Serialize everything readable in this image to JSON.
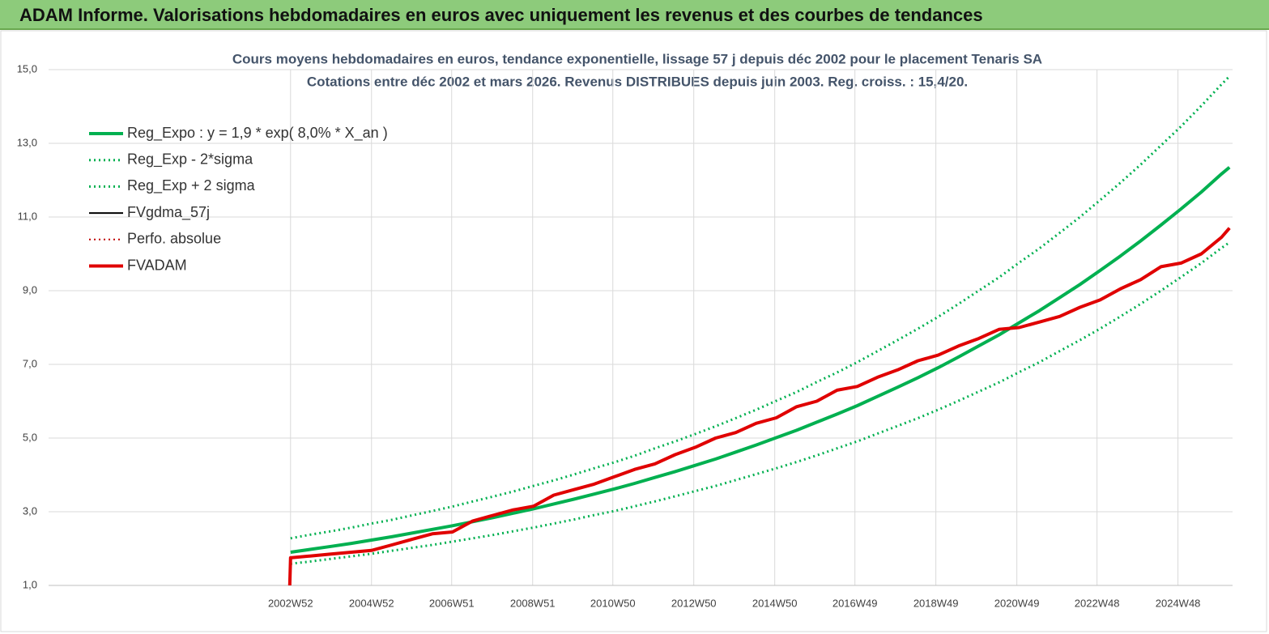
{
  "chart_data": {
    "type": "line",
    "title": "ADAM Informe. Valorisations hebdomadaires en euros avec uniquement les revenus et des courbes de tendances",
    "subtitle": [
      "Cours moyens  hebdomadaires en euros, tendance exponentielle, lissage 57 j depuis déc 2002 pour le placement Tenaris SA",
      "Cotations entre déc 2002 et mars 2026.  Revenus DISTRIBUES depuis juin 2003.  Reg. croiss. : 15,4/20."
    ],
    "x": [
      "2002W51",
      "2002W52",
      "2003W26",
      "2003W52",
      "2004W26",
      "2004W52",
      "2005W26",
      "2005W52",
      "2006W26",
      "2006W52",
      "2007W26",
      "2007W52",
      "2008W26",
      "2008W52",
      "2009W26",
      "2009W52",
      "2010W26",
      "2010W52",
      "2011W26",
      "2011W52",
      "2012W26",
      "2012W52",
      "2013W26",
      "2013W52",
      "2014W26",
      "2014W52",
      "2015W26",
      "2015W52",
      "2016W26",
      "2016W52",
      "2017W26",
      "2017W52",
      "2018W26",
      "2018W52",
      "2019W26",
      "2019W52",
      "2020W26",
      "2020W52",
      "2021W26",
      "2021W52",
      "2022W26",
      "2022W52",
      "2023W26",
      "2023W52",
      "2024W26",
      "2024W52",
      "2025W26",
      "2025W52",
      "2026W10"
    ],
    "xlim": [
      "1997W01",
      "2026W14"
    ],
    "xticks": [
      "2002W52",
      "2004W52",
      "2006W51",
      "2008W51",
      "2010W50",
      "2012W50",
      "2014W50",
      "2016W49",
      "2018W49",
      "2020W49",
      "2022W48",
      "2024W48"
    ],
    "ylim": [
      1,
      15
    ],
    "yticks": [
      {
        "value": 1,
        "label": "1,0"
      },
      {
        "value": 3,
        "label": "3,0"
      },
      {
        "value": 5,
        "label": "5,0"
      },
      {
        "value": 7,
        "label": "7,0"
      },
      {
        "value": 9,
        "label": "9,0"
      },
      {
        "value": 11,
        "label": "11,0"
      },
      {
        "value": 13,
        "label": "13,0"
      },
      {
        "value": 15,
        "label": "15,0"
      }
    ],
    "grid": true,
    "legend": "top-left",
    "series": [
      {
        "name": "Reg_Expo : y = 1,9 * exp( 8,0% *  X_an )",
        "color": "#00b050",
        "width": 4,
        "dashed": false,
        "values": [
          null,
          1.9,
          1.98,
          2.06,
          2.14,
          2.23,
          2.32,
          2.42,
          2.52,
          2.62,
          2.73,
          2.84,
          2.96,
          3.08,
          3.21,
          3.34,
          3.48,
          3.62,
          3.77,
          3.93,
          4.09,
          4.26,
          4.43,
          4.62,
          4.81,
          5.01,
          5.21,
          5.43,
          5.65,
          5.88,
          6.13,
          6.38,
          6.64,
          6.91,
          7.2,
          7.5,
          7.8,
          8.13,
          8.46,
          8.81,
          9.17,
          9.55,
          9.94,
          10.35,
          10.78,
          11.22,
          11.68,
          12.17,
          12.35
        ]
      },
      {
        "name": "Reg_Exp - 2*sigma",
        "color": "#00b050",
        "width": 3,
        "dashed": true,
        "values": [
          null,
          1.59,
          1.65,
          1.72,
          1.79,
          1.86,
          1.94,
          2.02,
          2.1,
          2.19,
          2.28,
          2.37,
          2.47,
          2.57,
          2.68,
          2.79,
          2.91,
          3.02,
          3.15,
          3.28,
          3.42,
          3.56,
          3.7,
          3.86,
          4.02,
          4.18,
          4.35,
          4.53,
          4.72,
          4.91,
          5.12,
          5.33,
          5.54,
          5.77,
          6.01,
          6.26,
          6.51,
          6.79,
          7.06,
          7.36,
          7.66,
          7.97,
          8.3,
          8.64,
          9.0,
          9.37,
          9.75,
          10.16,
          10.31
        ]
      },
      {
        "name": "Reg_Exp + 2 sigma",
        "color": "#00b050",
        "width": 3,
        "dashed": true,
        "values": [
          null,
          2.28,
          2.38,
          2.47,
          2.57,
          2.68,
          2.78,
          2.9,
          3.02,
          3.14,
          3.28,
          3.41,
          3.55,
          3.7,
          3.85,
          4.01,
          4.18,
          4.34,
          4.52,
          4.72,
          4.91,
          5.11,
          5.32,
          5.54,
          5.77,
          6.01,
          6.25,
          6.52,
          6.78,
          7.06,
          7.36,
          7.66,
          7.97,
          8.29,
          8.64,
          9.0,
          9.36,
          9.76,
          10.15,
          10.57,
          11.0,
          11.46,
          11.93,
          12.42,
          12.94,
          13.46,
          14.02,
          14.6,
          14.82
        ]
      },
      {
        "name": "FVgdma_57j",
        "color": "#000000",
        "width": 2,
        "dashed": false,
        "values": [
          null,
          1.75,
          1.8,
          1.85,
          1.9,
          1.95,
          2.1,
          2.25,
          2.4,
          2.45,
          2.75,
          2.9,
          3.05,
          3.15,
          3.45,
          3.6,
          3.75,
          3.95,
          4.15,
          4.3,
          4.55,
          4.75,
          5.0,
          5.15,
          5.4,
          5.55,
          5.85,
          6.0,
          6.3,
          6.4,
          6.65,
          6.85,
          7.1,
          7.25,
          7.5,
          7.7,
          7.95,
          8.0,
          8.15,
          8.3,
          8.55,
          8.75,
          9.05,
          9.3,
          9.65,
          9.75,
          10.0,
          10.45,
          10.7
        ]
      },
      {
        "name": "Perfo. absolue",
        "color": "#c00000",
        "width": 2,
        "dashed": true,
        "values": [
          null,
          1.75,
          1.8,
          1.85,
          1.9,
          1.95,
          2.1,
          2.25,
          2.4,
          2.45,
          2.75,
          2.9,
          3.05,
          3.15,
          3.45,
          3.6,
          3.75,
          3.95,
          4.15,
          4.3,
          4.55,
          4.75,
          5.0,
          5.15,
          5.4,
          5.55,
          5.85,
          6.0,
          6.3,
          6.4,
          6.65,
          6.85,
          7.1,
          7.25,
          7.5,
          7.7,
          7.95,
          8.0,
          8.15,
          8.3,
          8.55,
          8.75,
          9.05,
          9.3,
          9.65,
          9.75,
          10.0,
          10.45,
          10.7
        ]
      },
      {
        "name": "FVADAM",
        "color": "#e00000",
        "width": 4,
        "dashed": false,
        "values": [
          1.0,
          1.75,
          1.8,
          1.85,
          1.9,
          1.95,
          2.1,
          2.25,
          2.4,
          2.45,
          2.75,
          2.9,
          3.05,
          3.15,
          3.45,
          3.6,
          3.75,
          3.95,
          4.15,
          4.3,
          4.55,
          4.75,
          5.0,
          5.15,
          5.4,
          5.55,
          5.85,
          6.0,
          6.3,
          6.4,
          6.65,
          6.85,
          7.1,
          7.25,
          7.5,
          7.7,
          7.95,
          8.0,
          8.15,
          8.3,
          8.55,
          8.75,
          9.05,
          9.3,
          9.65,
          9.75,
          10.0,
          10.45,
          10.7
        ]
      }
    ]
  }
}
